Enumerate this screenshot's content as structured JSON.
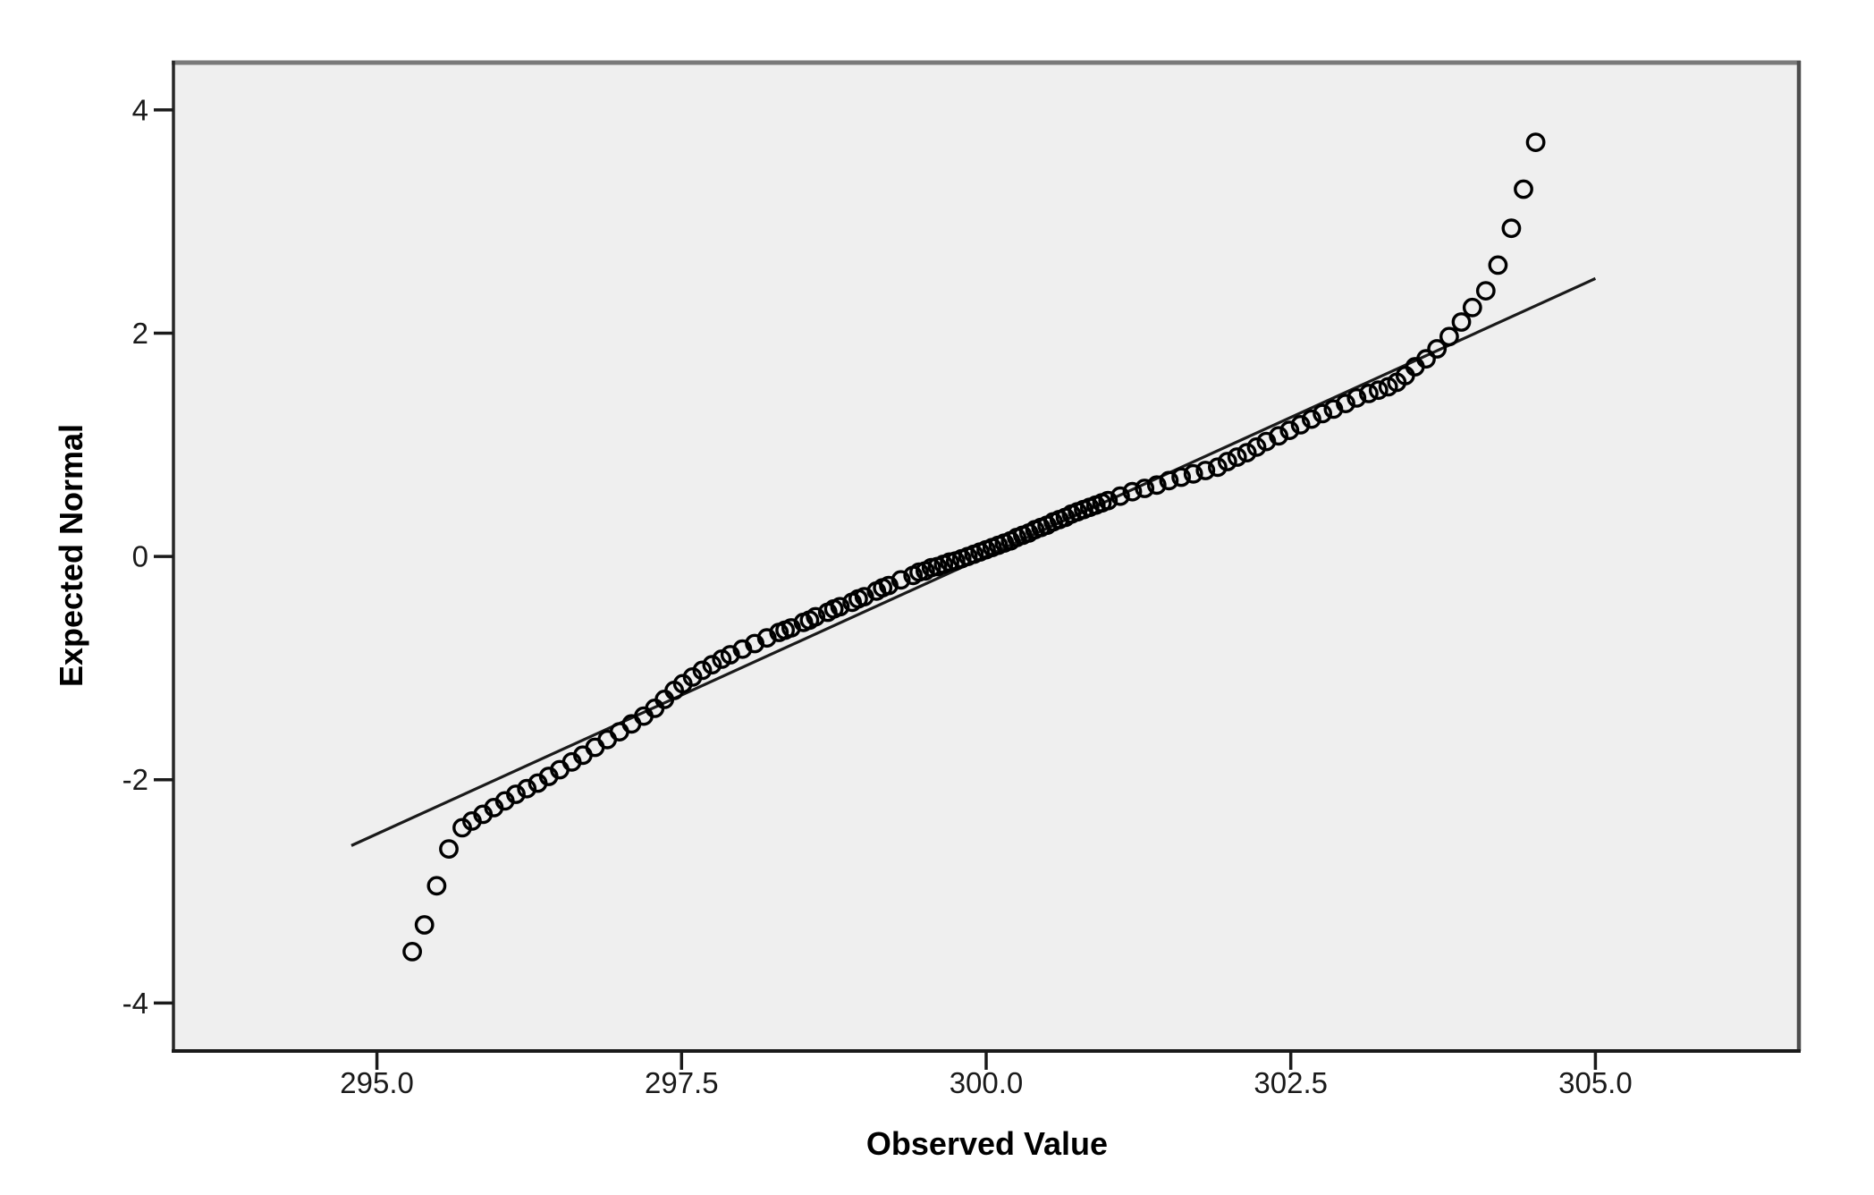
{
  "chart_data": {
    "type": "scatter",
    "subtype": "normal-qq-plot",
    "title": "",
    "xlabel": "Observed Value",
    "ylabel": "Expected Normal",
    "xlim": [
      293.33,
      306.67
    ],
    "ylim": [
      -4.43,
      4.44
    ],
    "grid": false,
    "legend": "none",
    "x_ticks": [
      {
        "value": 295.0,
        "label": "295.0"
      },
      {
        "value": 297.5,
        "label": "297.5"
      },
      {
        "value": 300.0,
        "label": "300.0"
      },
      {
        "value": 302.5,
        "label": "302.5"
      },
      {
        "value": 305.0,
        "label": "305.0"
      }
    ],
    "y_ticks": [
      {
        "value": 4,
        "label": "4"
      },
      {
        "value": 2,
        "label": "2"
      },
      {
        "value": 0,
        "label": "0"
      },
      {
        "value": -2,
        "label": "-2"
      },
      {
        "value": -4,
        "label": "-4"
      }
    ],
    "fit_line": {
      "x1": 294.79,
      "y1": -2.59,
      "x2": 305.0,
      "y2": 2.49
    },
    "marker": {
      "shape": "open-circle",
      "radius": 9.2,
      "stroke_width": 3.4
    },
    "colors": {
      "page_bg": "#ffffff",
      "plot_bg": "#efefef",
      "marker": "#000000",
      "fit_line": "#1a1a1a",
      "frame_top": "#7a7a7a",
      "frame_right": "#4d4d4d",
      "frame_left": "#262626",
      "frame_bottom": "#1a1a1a",
      "text": "#1a1a1a"
    },
    "points": [
      [
        295.29,
        -3.54
      ],
      [
        295.39,
        -3.3
      ],
      [
        295.49,
        -2.95
      ],
      [
        295.59,
        -2.62
      ],
      [
        295.7,
        -2.43
      ],
      [
        295.78,
        -2.37
      ],
      [
        295.87,
        -2.31
      ],
      [
        295.96,
        -2.25
      ],
      [
        296.05,
        -2.19
      ],
      [
        296.14,
        -2.13
      ],
      [
        296.23,
        -2.08
      ],
      [
        296.32,
        -2.03
      ],
      [
        296.41,
        -1.97
      ],
      [
        296.5,
        -1.91
      ],
      [
        296.6,
        -1.84
      ],
      [
        296.69,
        -1.78
      ],
      [
        296.79,
        -1.71
      ],
      [
        296.89,
        -1.64
      ],
      [
        296.99,
        -1.57
      ],
      [
        297.09,
        -1.5
      ],
      [
        297.19,
        -1.43
      ],
      [
        297.28,
        -1.36
      ],
      [
        297.36,
        -1.28
      ],
      [
        297.44,
        -1.2
      ],
      [
        297.51,
        -1.14
      ],
      [
        297.59,
        -1.08
      ],
      [
        297.67,
        -1.02
      ],
      [
        297.75,
        -0.97
      ],
      [
        297.83,
        -0.92
      ],
      [
        297.9,
        -0.88
      ],
      [
        298.0,
        -0.83
      ],
      [
        298.1,
        -0.78
      ],
      [
        298.2,
        -0.73
      ],
      [
        298.3,
        -0.68
      ],
      [
        298.4,
        -0.64
      ],
      [
        298.5,
        -0.59
      ],
      [
        298.6,
        -0.54
      ],
      [
        298.7,
        -0.5
      ],
      [
        298.8,
        -0.45
      ],
      [
        298.9,
        -0.41
      ],
      [
        299.0,
        -0.36
      ],
      [
        299.1,
        -0.31
      ],
      [
        299.2,
        -0.26
      ],
      [
        299.3,
        -0.21
      ],
      [
        299.4,
        -0.17
      ],
      [
        299.5,
        -0.13
      ],
      [
        299.6,
        -0.09
      ],
      [
        299.7,
        -0.05
      ],
      [
        299.8,
        -0.02
      ],
      [
        299.9,
        0.02
      ],
      [
        300.0,
        0.06
      ],
      [
        300.1,
        0.1
      ],
      [
        300.2,
        0.14
      ],
      [
        300.3,
        0.19
      ],
      [
        300.4,
        0.24
      ],
      [
        300.5,
        0.28
      ],
      [
        300.6,
        0.33
      ],
      [
        300.7,
        0.38
      ],
      [
        300.8,
        0.42
      ],
      [
        300.9,
        0.46
      ],
      [
        301.0,
        0.5
      ],
      [
        301.1,
        0.54
      ],
      [
        301.2,
        0.58
      ],
      [
        301.3,
        0.61
      ],
      [
        301.4,
        0.64
      ],
      [
        301.5,
        0.68
      ],
      [
        301.6,
        0.71
      ],
      [
        301.7,
        0.74
      ],
      [
        301.8,
        0.77
      ],
      [
        301.9,
        0.8
      ],
      [
        298.35,
        -0.66
      ],
      [
        298.55,
        -0.57
      ],
      [
        298.75,
        -0.47
      ],
      [
        298.95,
        -0.38
      ],
      [
        299.15,
        -0.28
      ],
      [
        299.45,
        -0.14
      ],
      [
        299.55,
        -0.1
      ],
      [
        299.65,
        -0.07
      ],
      [
        299.75,
        -0.04
      ],
      [
        299.85,
        0.0
      ],
      [
        299.95,
        0.04
      ],
      [
        300.05,
        0.08
      ],
      [
        300.15,
        0.12
      ],
      [
        300.25,
        0.17
      ],
      [
        300.35,
        0.21
      ],
      [
        300.45,
        0.26
      ],
      [
        300.55,
        0.31
      ],
      [
        300.65,
        0.35
      ],
      [
        300.75,
        0.4
      ],
      [
        300.85,
        0.44
      ],
      [
        300.95,
        0.48
      ],
      [
        301.98,
        0.85
      ],
      [
        302.06,
        0.89
      ],
      [
        302.14,
        0.93
      ],
      [
        302.22,
        0.98
      ],
      [
        302.3,
        1.03
      ],
      [
        302.4,
        1.08
      ],
      [
        302.49,
        1.13
      ],
      [
        302.58,
        1.18
      ],
      [
        302.67,
        1.23
      ],
      [
        302.76,
        1.28
      ],
      [
        302.85,
        1.32
      ],
      [
        302.95,
        1.37
      ],
      [
        303.04,
        1.42
      ],
      [
        303.14,
        1.46
      ],
      [
        303.22,
        1.49
      ],
      [
        303.3,
        1.52
      ],
      [
        303.37,
        1.56
      ],
      [
        303.44,
        1.62
      ],
      [
        303.52,
        1.7
      ],
      [
        303.61,
        1.77
      ],
      [
        303.7,
        1.86
      ],
      [
        303.8,
        1.97
      ],
      [
        303.9,
        2.1
      ],
      [
        303.99,
        2.23
      ],
      [
        304.1,
        2.38
      ],
      [
        304.2,
        2.61
      ],
      [
        304.31,
        2.94
      ],
      [
        304.41,
        3.29
      ],
      [
        304.51,
        3.71
      ]
    ]
  }
}
